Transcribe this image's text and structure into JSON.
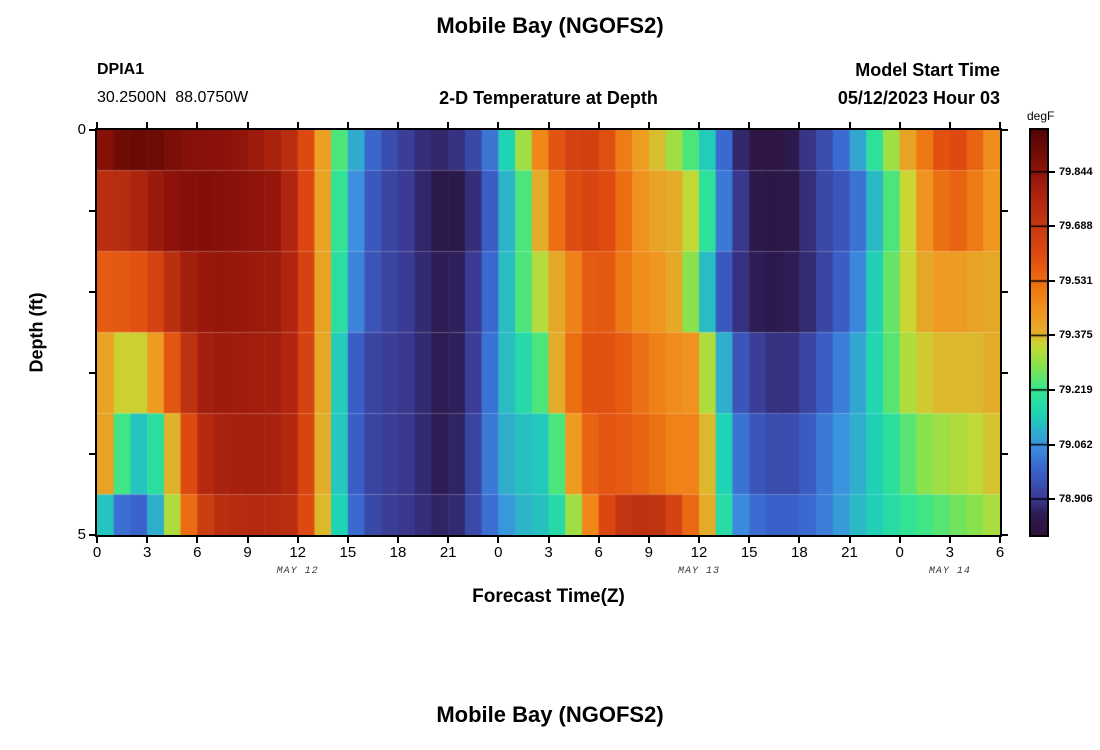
{
  "header": {
    "title": "Mobile Bay (NGOFS2)",
    "station_id": "DPIA1",
    "station_coords": "30.2500N  88.0750W",
    "subtitle": "2-D Temperature at Depth",
    "model_start_label": "Model Start Time",
    "model_start_value": "05/12/2023 Hour 03"
  },
  "footer": {
    "next_panel_title": "Mobile Bay (NGOFS2)"
  },
  "chart_data": {
    "type": "heatmap",
    "title": "2-D Temperature at Depth",
    "units": "degF",
    "x_axis": {
      "label": "Forecast Time(Z)",
      "hours_span": 54,
      "tick_hours": [
        0,
        3,
        6,
        9,
        12,
        15,
        18,
        21,
        24,
        27,
        30,
        33,
        36,
        39,
        42,
        45,
        48,
        51,
        54
      ],
      "tick_labels": [
        "0",
        "3",
        "6",
        "9",
        "12",
        "15",
        "18",
        "21",
        "0",
        "3",
        "6",
        "9",
        "12",
        "15",
        "18",
        "21",
        "0",
        "3",
        "6"
      ],
      "date_labels": [
        {
          "label": "MAY 12",
          "hour": 12
        },
        {
          "label": "MAY 13",
          "hour": 36
        },
        {
          "label": "MAY 14",
          "hour": 51
        }
      ]
    },
    "y_axis": {
      "label": "Depth (ft)",
      "tick_depths": [
        0,
        1,
        2,
        3,
        4,
        5
      ],
      "tick_labels": [
        "0",
        "",
        "",
        "",
        "",
        "5"
      ],
      "range_ft": [
        0,
        5
      ]
    },
    "colorbar": {
      "unit_label": "degF",
      "vmin": 78.803,
      "vmax": 79.964,
      "tick_values": [
        79.844,
        79.688,
        79.531,
        79.375,
        79.219,
        79.062,
        78.906
      ],
      "stops": [
        [
          0.0,
          "#30123b"
        ],
        [
          0.05,
          "#2c1a4e"
        ],
        [
          0.09,
          "#3a3a92"
        ],
        [
          0.16,
          "#3a62cc"
        ],
        [
          0.22,
          "#3c8fe0"
        ],
        [
          0.3,
          "#1fd4b4"
        ],
        [
          0.36,
          "#35e68f"
        ],
        [
          0.42,
          "#8ae24a"
        ],
        [
          0.47,
          "#c8d834"
        ],
        [
          0.5,
          "#e2ae2a"
        ],
        [
          0.55,
          "#f0961f"
        ],
        [
          0.6,
          "#ee7d15"
        ],
        [
          0.65,
          "#e86012"
        ],
        [
          0.7,
          "#dc4711"
        ],
        [
          0.76,
          "#c63b11"
        ],
        [
          0.83,
          "#b0260f"
        ],
        [
          0.9,
          "#8e130a"
        ],
        [
          1.0,
          "#520402"
        ]
      ]
    },
    "series": [
      {
        "depth_ft": 0,
        "temps_degF": [
          79.84,
          79.89,
          79.92,
          79.92,
          79.9,
          79.87,
          79.86,
          79.86,
          79.85,
          79.83,
          79.8,
          79.77,
          79.7,
          79.52,
          79.32,
          79.16,
          79.03,
          78.96,
          78.93,
          78.9,
          78.88,
          78.88,
          78.91,
          78.96,
          79.08,
          79.22,
          79.4,
          79.55,
          79.62,
          79.66,
          79.64,
          79.55,
          79.45,
          79.4,
          79.34,
          79.28,
          79.2,
          79.08,
          78.92,
          78.84,
          78.82,
          78.84,
          78.88,
          78.92,
          78.97,
          79.04,
          79.14,
          79.26,
          79.36,
          79.46,
          79.56,
          79.62,
          79.6,
          79.5,
          79.42
        ]
      },
      {
        "depth_ft": 1,
        "temps_degF": [
          79.73,
          79.73,
          79.75,
          79.8,
          79.84,
          79.86,
          79.87,
          79.87,
          79.86,
          79.85,
          79.84,
          79.82,
          79.72,
          79.52,
          79.3,
          79.12,
          79.0,
          78.94,
          78.92,
          78.9,
          78.86,
          78.85,
          78.86,
          78.92,
          79.04,
          79.18,
          79.3,
          79.48,
          79.58,
          79.63,
          79.63,
          79.58,
          79.48,
          79.42,
          79.4,
          79.38,
          79.3,
          79.1,
          78.95,
          78.86,
          78.84,
          78.84,
          78.86,
          78.92,
          78.95,
          78.98,
          79.05,
          79.18,
          79.3,
          79.4,
          79.5,
          79.55,
          79.55,
          79.46,
          79.42
        ]
      },
      {
        "depth_ft": 2,
        "temps_degF": [
          79.57,
          79.57,
          79.58,
          79.6,
          79.68,
          79.78,
          79.82,
          79.83,
          79.83,
          79.82,
          79.82,
          79.8,
          79.74,
          79.54,
          79.28,
          79.1,
          78.98,
          78.94,
          78.92,
          78.9,
          78.87,
          78.86,
          78.88,
          78.94,
          79.06,
          79.18,
          79.3,
          79.36,
          79.44,
          79.54,
          79.6,
          79.55,
          79.47,
          79.45,
          79.44,
          79.36,
          79.22,
          79.02,
          78.92,
          78.87,
          78.86,
          78.86,
          78.87,
          78.9,
          78.96,
          79.0,
          79.09,
          79.2,
          79.32,
          79.38,
          79.42,
          79.44,
          79.42,
          79.4,
          79.4
        ]
      },
      {
        "depth_ft": 3,
        "temps_degF": [
          79.46,
          79.36,
          79.35,
          79.36,
          79.5,
          79.66,
          79.78,
          79.81,
          79.81,
          79.8,
          79.8,
          79.79,
          79.74,
          79.54,
          79.26,
          79.02,
          78.94,
          78.92,
          78.91,
          78.9,
          78.87,
          78.86,
          78.88,
          78.95,
          79.08,
          79.16,
          79.18,
          79.3,
          79.48,
          79.58,
          79.6,
          79.58,
          79.55,
          79.5,
          79.48,
          79.45,
          79.45,
          79.2,
          79.0,
          78.93,
          78.9,
          78.89,
          78.9,
          78.96,
          79.0,
          79.06,
          79.12,
          79.2,
          79.3,
          79.35,
          79.37,
          79.38,
          79.37,
          79.38,
          79.4
        ]
      },
      {
        "depth_ft": 4,
        "temps_degF": [
          79.5,
          79.32,
          79.14,
          79.12,
          79.26,
          79.5,
          79.72,
          79.78,
          79.79,
          79.79,
          79.79,
          79.78,
          79.74,
          79.52,
          79.25,
          79.02,
          78.94,
          78.92,
          78.91,
          78.9,
          78.87,
          78.86,
          78.89,
          78.97,
          79.08,
          79.12,
          79.13,
          79.14,
          79.34,
          79.52,
          79.58,
          79.58,
          79.56,
          79.54,
          79.5,
          79.47,
          79.5,
          79.25,
          79.05,
          78.98,
          78.95,
          78.94,
          78.95,
          79.0,
          79.05,
          79.08,
          79.12,
          79.17,
          79.22,
          79.28,
          79.3,
          79.32,
          79.33,
          79.35,
          79.38
        ]
      },
      {
        "depth_ft": 5,
        "temps_degF": [
          79.22,
          79.04,
          78.98,
          79.0,
          79.2,
          79.45,
          79.62,
          79.72,
          79.74,
          79.75,
          79.75,
          79.74,
          79.72,
          79.5,
          79.25,
          79.05,
          78.95,
          78.92,
          78.91,
          78.9,
          78.88,
          78.87,
          78.9,
          78.98,
          79.04,
          79.1,
          79.12,
          79.13,
          79.22,
          79.4,
          79.55,
          79.68,
          79.72,
          79.72,
          79.7,
          79.58,
          79.5,
          79.28,
          79.08,
          79.02,
          78.99,
          78.98,
          78.99,
          79.01,
          79.05,
          79.1,
          79.13,
          79.16,
          79.2,
          79.22,
          79.24,
          79.26,
          79.28,
          79.3,
          79.34
        ]
      }
    ]
  }
}
